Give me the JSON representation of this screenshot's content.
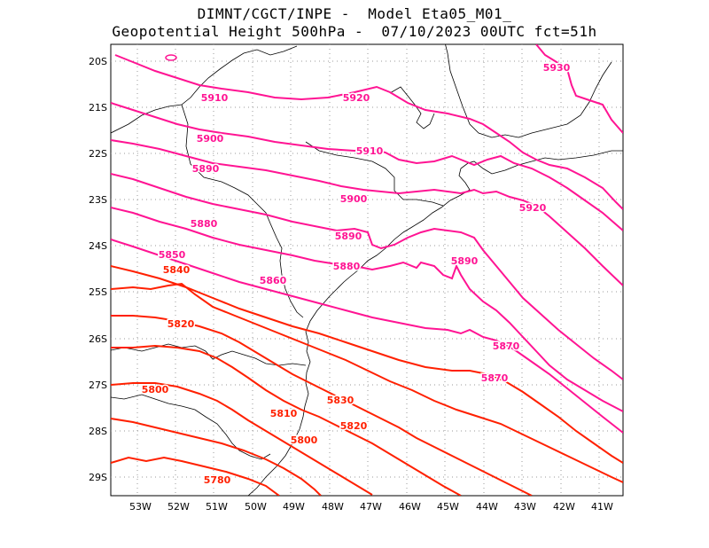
{
  "header": {
    "line1": "DIMNT/CGCT/INPE -  Model Eta05_M01_",
    "line2": "Geopotential Height 500hPa -  07/10/2023 00UTC fct=51h"
  },
  "map": {
    "lat_labels": [
      "20S",
      "21S",
      "22S",
      "23S",
      "24S",
      "25S",
      "26S",
      "27S",
      "28S",
      "29S"
    ],
    "lon_labels": [
      "53W",
      "52W",
      "51W",
      "50W",
      "49W",
      "48W",
      "47W",
      "46W",
      "45W",
      "44W",
      "43W",
      "42W",
      "41W"
    ],
    "contour_labels": [
      "5930",
      "5920",
      "5920",
      "5910",
      "5910",
      "5900",
      "5900",
      "5890",
      "5890",
      "5890",
      "5880",
      "5880",
      "5870",
      "5870",
      "5860",
      "5850",
      "5840",
      "5830",
      "5820",
      "5820",
      "5810",
      "5800",
      "5800",
      "5780"
    ],
    "colors": {
      "high": "#ff1493",
      "low": "#ff2000",
      "coast": "#000000",
      "grid": "#999999"
    }
  }
}
